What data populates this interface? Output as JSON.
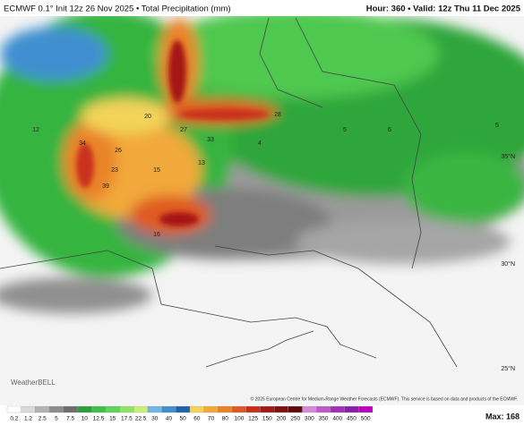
{
  "header": {
    "left": "ECMWF 0.1° Init 12z 26 Nov 2025 • Total Precipitation (mm)",
    "right": "Hour: 360 • Valid: 12z Thu 11 Dec 2025"
  },
  "map": {
    "latitude_labels": [
      "35°N",
      "30°N",
      "25°N"
    ],
    "point_values": [
      34,
      26,
      20,
      27,
      33,
      28,
      13,
      15,
      16,
      39,
      23,
      12,
      5,
      6,
      5,
      4
    ],
    "logo": "WeatherBELL",
    "credit": "© 2025 European Centre for Medium-Range Weather Forecasts (ECMWF). This service is based on data and products of the ECMWF."
  },
  "legend": {
    "labels": [
      "0.2",
      "1.2",
      "2.5",
      "5",
      "7.5",
      "10",
      "12.5",
      "15",
      "17.5",
      "22.5",
      "30",
      "40",
      "50",
      "60",
      "70",
      "80",
      "100",
      "125",
      "150",
      "200",
      "250",
      "300",
      "350",
      "400",
      "450",
      "500"
    ],
    "colors": [
      "#ffffff",
      "#d9d9d9",
      "#b3b3b3",
      "#8c8c8c",
      "#6e6e6e",
      "#2e9e3a",
      "#3fbf4a",
      "#5fd35a",
      "#8fe36a",
      "#c9ef7a",
      "#6fb7e8",
      "#3f8fd0",
      "#1f60b0",
      "#f3d35a",
      "#f1a93a",
      "#e9832a",
      "#df5a22",
      "#c9301c",
      "#a51818",
      "#7e1010",
      "#5c0c0c",
      "#d58ad8",
      "#c05ac8",
      "#a030b8",
      "#8a1ea8",
      "#c000c0"
    ],
    "max_label": "Max: 168"
  }
}
